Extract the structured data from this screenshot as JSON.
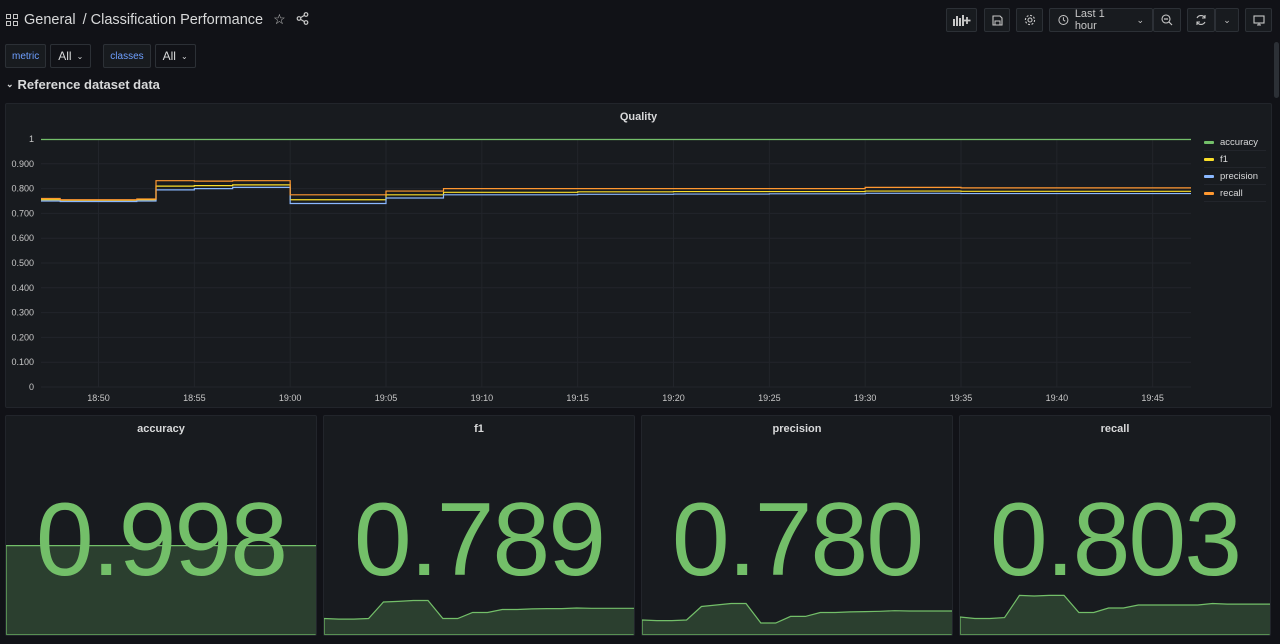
{
  "header": {
    "folder": "General",
    "title": "Classification Performance",
    "time_range": "Last 1 hour"
  },
  "variables": [
    {
      "name": "metric",
      "value": "All"
    },
    {
      "name": "classes",
      "value": "All"
    }
  ],
  "row": {
    "title": "Reference dataset data"
  },
  "colors": {
    "accuracy": "#73bf69",
    "f1": "#fade2a",
    "precision": "#8ab8ff",
    "recall": "#ff9830",
    "stat_value": "#73bf69"
  },
  "chart_data": {
    "type": "line",
    "title": "Quality",
    "xlabel": "",
    "ylabel": "",
    "ylim": [
      0,
      1
    ],
    "yticks": [
      "0",
      "0.100",
      "0.200",
      "0.300",
      "0.400",
      "0.500",
      "0.600",
      "0.700",
      "0.800",
      "0.900",
      "1"
    ],
    "xticks": [
      "18:50",
      "18:55",
      "19:00",
      "19:05",
      "19:10",
      "19:15",
      "19:20",
      "19:25",
      "19:30",
      "19:35",
      "19:40",
      "19:45"
    ],
    "grid": true,
    "legend_position": "right",
    "x": [
      "18:47",
      "18:48",
      "18:50",
      "18:52",
      "18:53",
      "18:55",
      "18:57",
      "18:59",
      "19:00",
      "19:01",
      "19:05",
      "19:07",
      "19:08",
      "19:10",
      "19:15",
      "19:20",
      "19:25",
      "19:30",
      "19:35",
      "19:40",
      "19:45",
      "19:47"
    ],
    "series": [
      {
        "name": "accuracy",
        "values": [
          0.998,
          0.998,
          0.998,
          0.998,
          0.998,
          0.998,
          0.998,
          0.998,
          0.998,
          0.998,
          0.998,
          0.998,
          0.998,
          0.998,
          0.998,
          0.998,
          0.998,
          0.998,
          0.998,
          0.998,
          0.998,
          0.998
        ]
      },
      {
        "name": "f1",
        "values": [
          0.755,
          0.753,
          0.753,
          0.755,
          0.81,
          0.812,
          0.815,
          0.815,
          0.755,
          0.755,
          0.775,
          0.775,
          0.785,
          0.785,
          0.787,
          0.788,
          0.788,
          0.79,
          0.789,
          0.789,
          0.789,
          0.789
        ]
      },
      {
        "name": "precision",
        "values": [
          0.75,
          0.748,
          0.748,
          0.75,
          0.795,
          0.8,
          0.805,
          0.805,
          0.74,
          0.74,
          0.762,
          0.762,
          0.775,
          0.775,
          0.777,
          0.778,
          0.779,
          0.781,
          0.78,
          0.78,
          0.78,
          0.78
        ]
      },
      {
        "name": "recall",
        "values": [
          0.76,
          0.755,
          0.755,
          0.758,
          0.832,
          0.83,
          0.832,
          0.832,
          0.775,
          0.775,
          0.79,
          0.79,
          0.8,
          0.8,
          0.8,
          0.8,
          0.8,
          0.805,
          0.803,
          0.803,
          0.803,
          0.803
        ]
      }
    ]
  },
  "stats": [
    {
      "title": "accuracy",
      "value": "0.998",
      "spark": [
        0.998,
        0.998,
        0.998,
        0.998,
        0.998,
        0.998,
        0.998,
        0.998,
        0.998,
        0.998,
        0.998,
        0.998,
        0.998,
        0.998,
        0.998,
        0.998,
        0.998,
        0.998,
        0.998,
        0.998,
        0.998,
        0.998
      ]
    },
    {
      "title": "f1",
      "value": "0.789",
      "spark": [
        0.755,
        0.753,
        0.753,
        0.755,
        0.81,
        0.812,
        0.815,
        0.815,
        0.755,
        0.755,
        0.775,
        0.775,
        0.785,
        0.785,
        0.787,
        0.788,
        0.788,
        0.79,
        0.789,
        0.789,
        0.789,
        0.789
      ]
    },
    {
      "title": "precision",
      "value": "0.780",
      "spark": [
        0.75,
        0.748,
        0.748,
        0.75,
        0.795,
        0.8,
        0.805,
        0.805,
        0.74,
        0.74,
        0.762,
        0.762,
        0.775,
        0.775,
        0.777,
        0.778,
        0.779,
        0.781,
        0.78,
        0.78,
        0.78,
        0.78
      ]
    },
    {
      "title": "recall",
      "value": "0.803",
      "spark": [
        0.76,
        0.755,
        0.755,
        0.758,
        0.832,
        0.83,
        0.832,
        0.832,
        0.775,
        0.775,
        0.79,
        0.79,
        0.8,
        0.8,
        0.8,
        0.8,
        0.8,
        0.805,
        0.803,
        0.803,
        0.803,
        0.803
      ]
    }
  ]
}
